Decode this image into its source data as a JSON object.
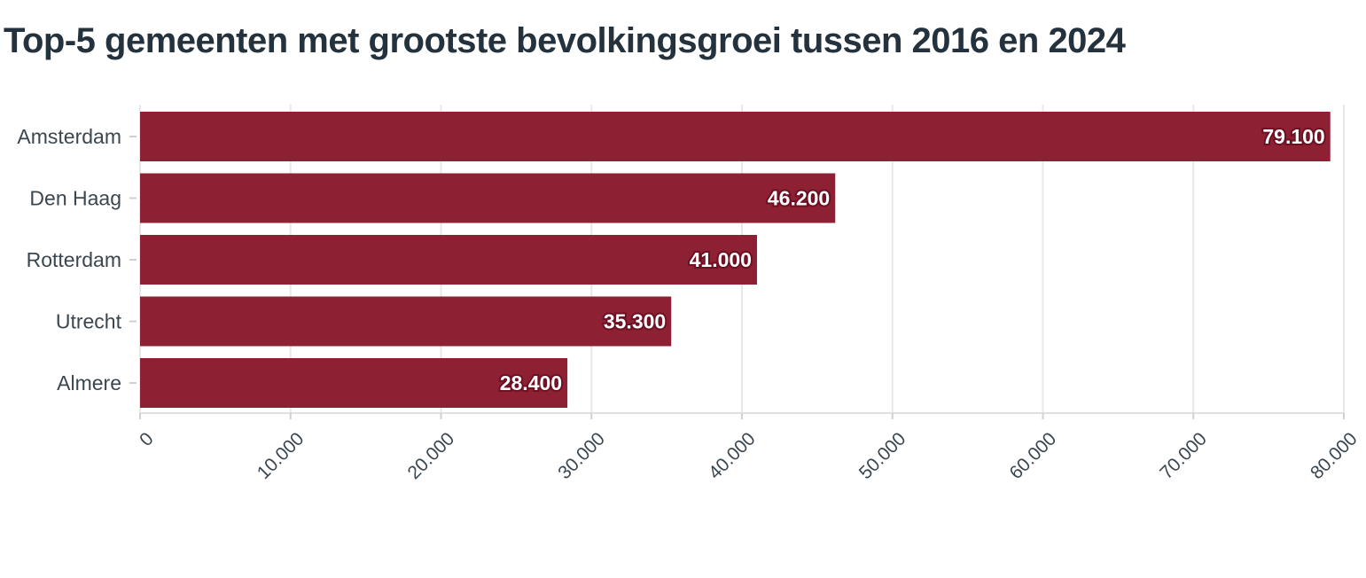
{
  "chart_data": {
    "type": "bar",
    "orientation": "horizontal",
    "title": "Top-5 gemeenten met grootste bevolkingsgroei tussen 2016 en 2024",
    "xlabel": "",
    "ylabel": "",
    "categories": [
      "Amsterdam",
      "Den Haag",
      "Rotterdam",
      "Utrecht",
      "Almere"
    ],
    "values": [
      79100,
      46200,
      41000,
      35300,
      28400
    ],
    "data_labels": [
      "79.100",
      "46.200",
      "41.000",
      "35.300",
      "28.400"
    ],
    "xlim": [
      0,
      80000
    ],
    "x_ticks": [
      0,
      10000,
      20000,
      30000,
      40000,
      50000,
      60000,
      70000,
      80000
    ],
    "x_tick_labels": [
      "0",
      "10.000",
      "20.000",
      "30.000",
      "40.000",
      "50.000",
      "60.000",
      "70.000",
      "80.000"
    ],
    "grid": true,
    "legend": "none",
    "bar_color": "#8e2033"
  }
}
